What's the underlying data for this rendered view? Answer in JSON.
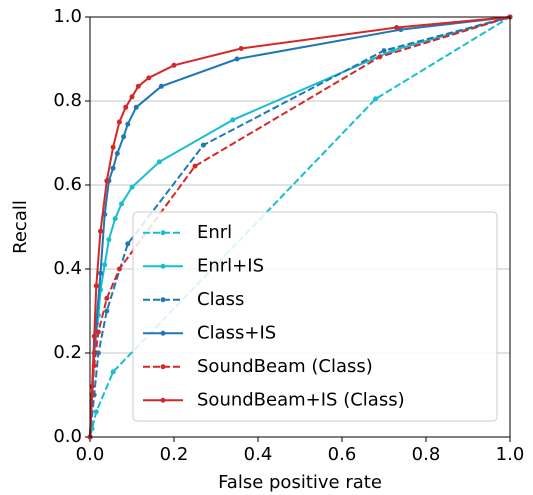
{
  "chart_data": {
    "type": "line",
    "xlabel": "False positive rate",
    "ylabel": "Recall",
    "xlim": [
      0,
      1
    ],
    "ylim": [
      0,
      1
    ],
    "xticks": [
      {
        "value": 0,
        "label": "0.0"
      },
      0.2,
      0.4,
      0.6,
      0.8,
      {
        "value": 1,
        "label": "1.0"
      }
    ],
    "yticks": [
      {
        "value": 0,
        "label": "0.0"
      },
      0.2,
      0.4,
      0.6,
      0.8,
      {
        "value": 1,
        "label": "1.0"
      }
    ],
    "grid": "y",
    "legend": "lower right",
    "series": [
      {
        "name": "Enrl",
        "color": "#17becf",
        "linestyle": "dashed",
        "x": [
          0,
          0.005,
          0.015,
          0.055,
          0.68,
          1
        ],
        "values": [
          0,
          0.02,
          0.06,
          0.155,
          0.805,
          1
        ]
      },
      {
        "name": "Enrl+IS",
        "color": "#17becf",
        "linestyle": "solid",
        "x": [
          0,
          0.005,
          0.01,
          0.02,
          0.025,
          0.035,
          0.045,
          0.06,
          0.075,
          0.1,
          0.165,
          0.34,
          0.72,
          1
        ],
        "values": [
          0,
          0.1,
          0.2,
          0.29,
          0.35,
          0.41,
          0.47,
          0.52,
          0.555,
          0.595,
          0.655,
          0.755,
          0.92,
          1
        ]
      },
      {
        "name": "Class",
        "color": "#1f77b4",
        "linestyle": "dashed",
        "x": [
          0,
          0.01,
          0.02,
          0.04,
          0.09,
          0.27,
          0.7,
          1
        ],
        "values": [
          0,
          0.1,
          0.2,
          0.3,
          0.46,
          0.695,
          0.92,
          1
        ]
      },
      {
        "name": "Class+IS",
        "color": "#1f77b4",
        "linestyle": "solid",
        "x": [
          0,
          0.005,
          0.01,
          0.015,
          0.025,
          0.035,
          0.045,
          0.055,
          0.065,
          0.08,
          0.09,
          0.11,
          0.17,
          0.35,
          0.74,
          1
        ],
        "values": [
          0,
          0.1,
          0.2,
          0.27,
          0.39,
          0.53,
          0.61,
          0.64,
          0.675,
          0.715,
          0.745,
          0.785,
          0.835,
          0.9,
          0.97,
          1
        ]
      },
      {
        "name": "SoundBeam (Class)",
        "color": "#d62728",
        "linestyle": "dashed",
        "x": [
          0,
          0.005,
          0.01,
          0.02,
          0.04,
          0.07,
          0.25,
          0.69,
          1
        ],
        "values": [
          0,
          0.1,
          0.17,
          0.25,
          0.33,
          0.4,
          0.645,
          0.905,
          1
        ]
      },
      {
        "name": "SoundBeam+IS (Class)",
        "color": "#d62728",
        "linestyle": "solid",
        "x": [
          0,
          0.005,
          0.01,
          0.015,
          0.025,
          0.04,
          0.055,
          0.07,
          0.085,
          0.1,
          0.115,
          0.14,
          0.2,
          0.36,
          0.73,
          1
        ],
        "values": [
          0,
          0.12,
          0.24,
          0.36,
          0.49,
          0.61,
          0.69,
          0.75,
          0.785,
          0.81,
          0.835,
          0.855,
          0.885,
          0.925,
          0.975,
          1
        ]
      }
    ]
  }
}
